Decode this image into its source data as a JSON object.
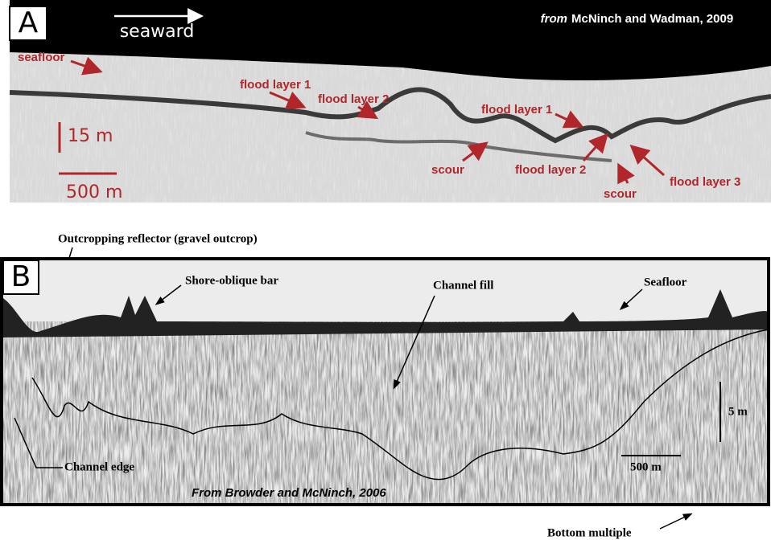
{
  "panel_a": {
    "label": "A",
    "direction": "seaward",
    "credit_prefix": "from",
    "credit": "McNinch and Wadman, 2009",
    "annotations": [
      "seafloor",
      "flood layer 1",
      "flood layer 2",
      "flood layer 1",
      "scour",
      "flood layer 2",
      "scour",
      "flood layer 3"
    ],
    "scale_vertical": "15 m",
    "scale_horizontal": "500 m"
  },
  "panel_b": {
    "label": "B",
    "annotations": [
      "Outcropping reflector (gravel outcrop)",
      "Shore-oblique bar",
      "Channel fill",
      "Seafloor",
      "Channel edge",
      "Bottom multiple"
    ],
    "scale_vertical": "5 m",
    "scale_horizontal": "500 m",
    "credit": "From Browder and McNinch, 2006"
  }
}
